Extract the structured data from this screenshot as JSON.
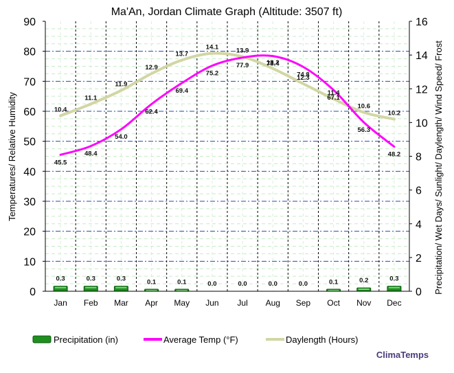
{
  "chart_data": {
    "type": "bar-line",
    "title": "Ma'An, Jordan Climate Graph (Altitude: 3507 ft)",
    "ylabel_left": "Temperatures/ Relative Humidity",
    "ylabel_right": "Precipitation/ Wet Days/ Sunlight/ Daylength/ Wind Speed/ Frost",
    "ylim_left": [
      0,
      90
    ],
    "yticks_left": [
      "0",
      "10",
      "20",
      "30",
      "40",
      "50",
      "60",
      "70",
      "80",
      "90"
    ],
    "ylim_right": [
      0,
      16
    ],
    "yticks_right": [
      "0",
      "2",
      "4",
      "6",
      "8",
      "10",
      "12",
      "14",
      "16"
    ],
    "categories": [
      "Jan",
      "Feb",
      "Mar",
      "Apr",
      "May",
      "Jun",
      "Jul",
      "Aug",
      "Sep",
      "Oct",
      "Nov",
      "Dec"
    ],
    "series": [
      {
        "name": "Precipitation (in)",
        "type": "bar",
        "axis": "right",
        "color": "#1f8f1f",
        "values": [
          0.3,
          0.3,
          0.3,
          0.1,
          0.1,
          0.0,
          0.0,
          0.0,
          0.0,
          0.1,
          0.2,
          0.3
        ],
        "labels": [
          "0.3",
          "0.3",
          "0.3",
          "0.1",
          "0.1",
          "0.0",
          "0.0",
          "0.0",
          "0.0",
          "0.1",
          "0.2",
          "0.3"
        ]
      },
      {
        "name": "Average Temp (°F)",
        "type": "line",
        "axis": "left",
        "color": "#ff00ff",
        "values": [
          45.5,
          48.4,
          54.0,
          62.4,
          69.4,
          75.2,
          77.9,
          78.4,
          74.8,
          67.1,
          56.3,
          48.2
        ],
        "labels": [
          "45.5",
          "48.4",
          "54.0",
          "62.4",
          "69.4",
          "75.2",
          "77.9",
          "78.4",
          "74.8",
          "67.1",
          "56.3",
          "48.2"
        ]
      },
      {
        "name": "Daylength (Hours)",
        "type": "line",
        "axis": "right",
        "color": "#d2d6a4",
        "values": [
          10.4,
          11.1,
          11.9,
          12.9,
          13.7,
          14.1,
          13.9,
          13.2,
          12.3,
          11.4,
          10.6,
          10.2
        ],
        "labels": [
          "10.4",
          "11.1",
          "11.9",
          "12.9",
          "13.7",
          "14.1",
          "13.9",
          "13.2",
          "12.3",
          "11.4",
          "10.6",
          "10.2"
        ]
      }
    ],
    "grid": true,
    "legend_position": "bottom",
    "watermark": "ClimaTemps"
  }
}
